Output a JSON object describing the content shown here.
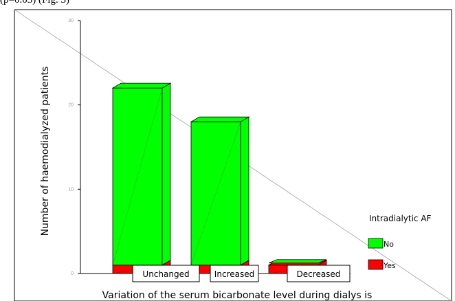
{
  "header_text": "(p=0.03) (Fig. 3)",
  "colors": {
    "no": "#00ff00",
    "yes": "#ff0000",
    "diagonal": "#b0b0b0"
  },
  "chart_data": {
    "type": "bar",
    "stacked": true,
    "three_d": true,
    "title": "",
    "xlabel": "Variation of the serum bicarbonate level during dialys is",
    "ylabel": "Number of haemodialyzed patients",
    "ylim": [
      0,
      30
    ],
    "yticks": [
      "0",
      "10",
      "20",
      "30"
    ],
    "grid": false,
    "categories": [
      "Unchanged",
      "Increased",
      "Decreased"
    ],
    "series": [
      {
        "name": "Yes",
        "values": [
          1,
          1,
          1
        ]
      },
      {
        "name": "No",
        "values": [
          21,
          17,
          0
        ]
      }
    ],
    "legend": {
      "title": "Intradialytic AF",
      "position": "right",
      "items": [
        "No",
        "Yes"
      ]
    }
  }
}
